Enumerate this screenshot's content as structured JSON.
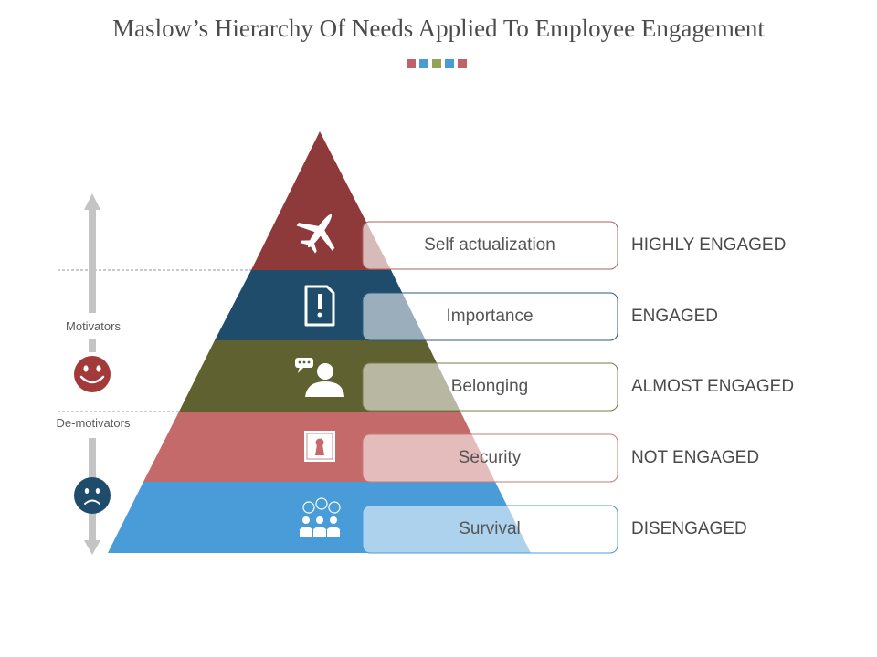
{
  "title": "Maslow’s Hierarchy Of Needs Applied To Employee Engagement",
  "title_dots": [
    "#c0626a",
    "#4a9ad4",
    "#96a356",
    "#4a9ad4",
    "#c0626a"
  ],
  "side": {
    "motivators": "Motivators",
    "demotivators": "De-motivators",
    "happy_face_icon": "smiley-face-icon",
    "sad_face_icon": "sad-face-icon"
  },
  "levels": [
    {
      "label": "Self actualization",
      "engagement": "HIGHLY ENGAGED",
      "color": "#8f3a3a",
      "icon": "airplane-icon"
    },
    {
      "label": "Importance",
      "engagement": "ENGAGED",
      "color": "#1f4c6b",
      "icon": "document-exclamation-icon"
    },
    {
      "label": "Belonging",
      "engagement": "ALMOST ENGAGED",
      "color": "#5f6131",
      "icon": "person-speech-icon"
    },
    {
      "label": "Security",
      "engagement": "NOT ENGAGED",
      "color": "#c46a6a",
      "icon": "keyhole-safe-icon"
    },
    {
      "label": "Survival",
      "engagement": "DISENGAGED",
      "color": "#4a9cd8",
      "icon": "group-people-icon"
    }
  ]
}
